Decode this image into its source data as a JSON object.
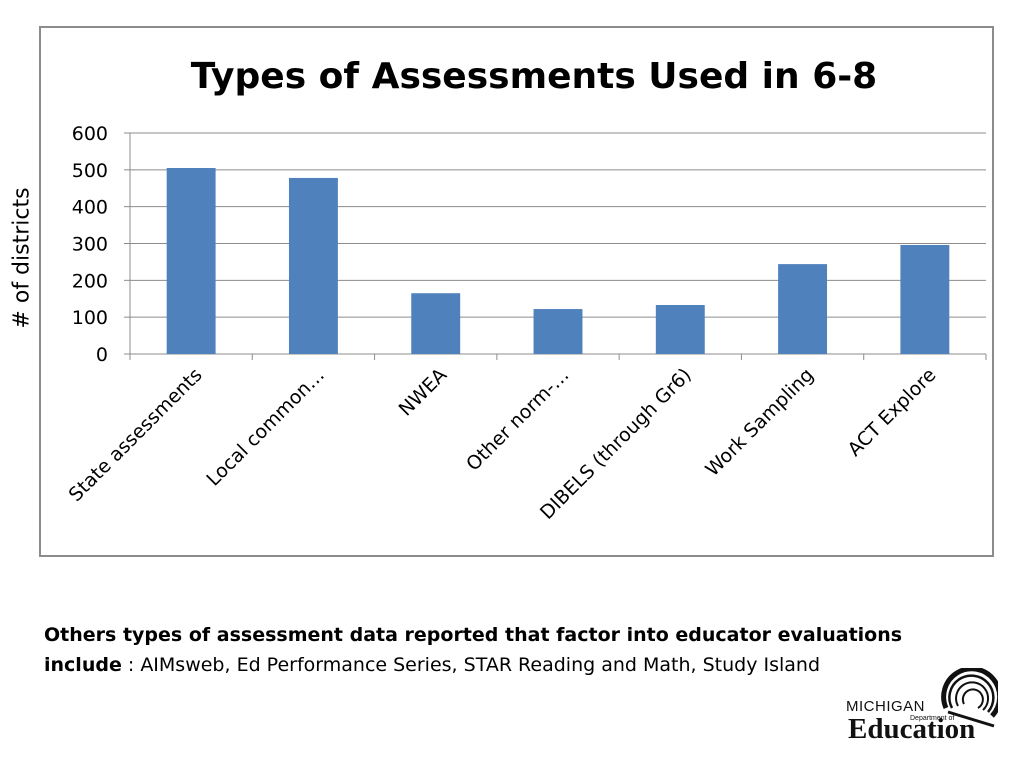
{
  "chart_data": {
    "type": "bar",
    "title": "Types of Assessments Used in 6-8",
    "ylabel": "# of districts",
    "xlabel": "",
    "categories": [
      "State assessments",
      "Local common…",
      "NWEA",
      "Other norm-…",
      "DIBELS (through Gr6)",
      "Work Sampling",
      "ACT Explore"
    ],
    "values": [
      505,
      478,
      165,
      122,
      133,
      244,
      296
    ],
    "ylim": [
      0,
      600
    ],
    "yticks": [
      0,
      100,
      200,
      300,
      400,
      500,
      600
    ],
    "grid": true,
    "legend": "none",
    "bar_color": "#4f81bd"
  },
  "footnote": {
    "bold_text": "Others types of assessment data reported that factor into educator evaluations include",
    "separator": " : ",
    "text": "AIMsweb, Ed Performance Series, STAR Reading and Math, Study Island"
  },
  "logo": {
    "line1": "MICHIGAN",
    "line2": "Department of",
    "line3": "Education"
  }
}
